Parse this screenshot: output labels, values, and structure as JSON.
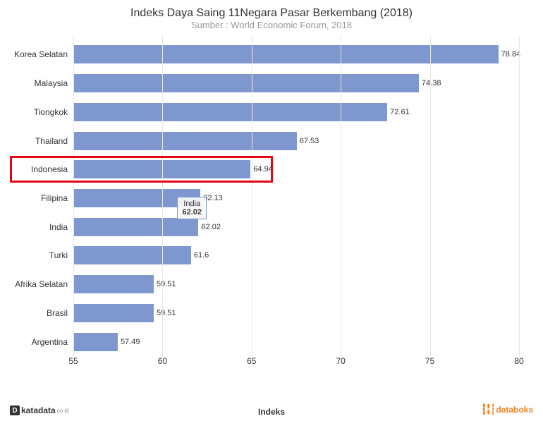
{
  "chart": {
    "type": "bar-horizontal",
    "title": "Indeks Daya Saing 11Negara Pasar Berkembang (2018)",
    "title_fontsize": 16,
    "title_color": "#333333",
    "subtitle": "Sumber : World Economic Forum, 2018",
    "subtitle_fontsize": 13,
    "subtitle_color": "#999999",
    "background_color": "#ffffff",
    "grid_color": "#e6e6e6",
    "bar_color": "#7f97cf",
    "label_fontsize": 12,
    "value_fontsize": 11,
    "x_axis": {
      "title": "Indeks",
      "min": 55,
      "max": 80,
      "tick_step": 5,
      "ticks": [
        55,
        60,
        65,
        70,
        75,
        80
      ]
    },
    "categories": [
      {
        "label": "Korea Selatan",
        "value": 78.84
      },
      {
        "label": "Malaysia",
        "value": 74.38
      },
      {
        "label": "Tiongkok",
        "value": 72.61
      },
      {
        "label": "Thailand",
        "value": 67.53
      },
      {
        "label": "Indonesia",
        "value": 64.94
      },
      {
        "label": "Filipina",
        "value": 62.13
      },
      {
        "label": "India",
        "value": 62.02
      },
      {
        "label": "Turki",
        "value": 61.6
      },
      {
        "label": "Afrika Selatan",
        "value": 59.51
      },
      {
        "label": "Brasil",
        "value": 59.51
      },
      {
        "label": "Argentina",
        "value": 57.49
      }
    ],
    "highlight": {
      "index": 4,
      "border_color": "#e30613",
      "border_width": 3
    },
    "tooltip": {
      "index": 6,
      "title": "India",
      "value": "62.02"
    }
  },
  "footer": {
    "left_brand": "katadata",
    "left_suffix": "co.id",
    "right_brand": "databoks",
    "right_color": "#f58220"
  }
}
